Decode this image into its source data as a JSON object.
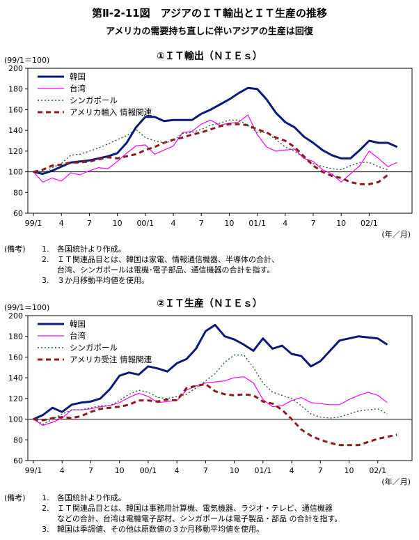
{
  "title": "第Ⅱ-2-11図　アジアのＩＴ輸出とＩＴ生産の推移",
  "subtitle": "アメリカの需要持ち直しに伴いアジアの生産は回復",
  "chart_data": [
    {
      "type": "line",
      "title": "①ＩＴ輸出（ＮＩＥｓ）",
      "ylabel": "(99/1＝100)",
      "xlabel": "(年／月)",
      "ylim": [
        60,
        200
      ],
      "yticks": [
        60,
        80,
        100,
        120,
        140,
        160,
        180,
        200
      ],
      "reference_line": 100,
      "legend_position": "top-left",
      "x_tick_labels": [
        {
          "index": 0,
          "label": "99/1"
        },
        {
          "index": 3,
          "label": "4"
        },
        {
          "index": 6,
          "label": "7"
        },
        {
          "index": 9,
          "label": "10"
        },
        {
          "index": 12,
          "label": "00/1"
        },
        {
          "index": 15,
          "label": "4"
        },
        {
          "index": 18,
          "label": "7"
        },
        {
          "index": 21,
          "label": "10"
        },
        {
          "index": 24,
          "label": "01/1"
        },
        {
          "index": 27,
          "label": "4"
        },
        {
          "index": 30,
          "label": "7"
        },
        {
          "index": 33,
          "label": "10"
        },
        {
          "index": 36,
          "label": "02/1"
        }
      ],
      "x_count": 41,
      "series": [
        {
          "name": "韓国",
          "color": "#0a1a7a",
          "style": "solid-thick",
          "values": [
            100,
            98,
            101,
            105,
            109,
            110,
            111,
            113,
            115,
            118,
            128,
            143,
            153,
            153,
            149,
            150,
            150,
            150,
            156,
            160,
            165,
            170,
            176,
            181,
            180,
            170,
            157,
            148,
            143,
            134,
            128,
            121,
            116,
            113,
            113,
            121,
            130,
            128,
            128,
            124
          ]
        },
        {
          "name": "台湾",
          "color": "#ff00ff",
          "style": "solid-thin",
          "values": [
            100,
            90,
            94,
            91,
            99,
            97,
            101,
            104,
            103,
            110,
            118,
            125,
            126,
            117,
            121,
            125,
            138,
            139,
            146,
            150,
            145,
            147,
            148,
            155,
            136,
            124,
            120,
            121,
            122,
            113,
            110,
            102,
            98,
            90,
            98,
            106,
            120,
            113,
            105,
            109
          ]
        },
        {
          "name": "シンガポール",
          "color": "#1a5c2a",
          "style": "dotted",
          "values": [
            100,
            98,
            104,
            108,
            116,
            117,
            120,
            123,
            127,
            131,
            135,
            141,
            133,
            130,
            128,
            130,
            137,
            138,
            141,
            145,
            147,
            150,
            150,
            145,
            138,
            138,
            131,
            124,
            120,
            114,
            108,
            105,
            103,
            102,
            106,
            109,
            109,
            105,
            102,
            null
          ]
        },
        {
          "name": "アメリカ輸入 情報関連",
          "color": "#8b1a1a",
          "style": "dashed-thick",
          "values": [
            100,
            102,
            106,
            107,
            109,
            109,
            110,
            112,
            114,
            113,
            115,
            117,
            121,
            124,
            128,
            131,
            133,
            136,
            138,
            141,
            144,
            146,
            146,
            145,
            141,
            138,
            133,
            130,
            124,
            115,
            106,
            100,
            96,
            94,
            90,
            88,
            88,
            90,
            97,
            null
          ]
        }
      ]
    },
    {
      "type": "line",
      "title": "②ＩＴ生産（ＮＩＥｓ）",
      "ylabel": "(99/1＝100)",
      "xlabel": "(年／月)",
      "ylim": [
        60,
        200
      ],
      "yticks": [
        60,
        80,
        100,
        120,
        140,
        160,
        180,
        200
      ],
      "reference_line": 100,
      "legend_position": "top-left",
      "x_tick_labels": [
        {
          "index": 0,
          "label": "99/1"
        },
        {
          "index": 3,
          "label": "4"
        },
        {
          "index": 6,
          "label": "7"
        },
        {
          "index": 9,
          "label": "10"
        },
        {
          "index": 12,
          "label": "00/1"
        },
        {
          "index": 15,
          "label": "4"
        },
        {
          "index": 18,
          "label": "7"
        },
        {
          "index": 21,
          "label": "10"
        },
        {
          "index": 24,
          "label": "01/1"
        },
        {
          "index": 27,
          "label": "4"
        },
        {
          "index": 30,
          "label": "7"
        },
        {
          "index": 33,
          "label": "10"
        },
        {
          "index": 36,
          "label": "02/1"
        }
      ],
      "x_count": 40,
      "series": [
        {
          "name": "韓国",
          "color": "#0a1a7a",
          "style": "solid-thick",
          "values": [
            100,
            104,
            111,
            107,
            114,
            116,
            117,
            120,
            129,
            142,
            145,
            143,
            151,
            149,
            146,
            154,
            158,
            168,
            185,
            191,
            180,
            177,
            172,
            166,
            178,
            168,
            171,
            163,
            161,
            151,
            156,
            166,
            176,
            178,
            180,
            179,
            178,
            172
          ]
        },
        {
          "name": "台湾",
          "color": "#ff00ff",
          "style": "solid-thin",
          "values": [
            100,
            94,
            97,
            101,
            109,
            109,
            110,
            112,
            113,
            116,
            121,
            125,
            122,
            116,
            117,
            118,
            128,
            132,
            135,
            136,
            137,
            140,
            141,
            135,
            119,
            112,
            113,
            118,
            121,
            116,
            115,
            114,
            114,
            119,
            123,
            126,
            123,
            116
          ]
        },
        {
          "name": "シンガポール",
          "color": "#1a5c2a",
          "style": "dotted",
          "values": [
            100,
            95,
            100,
            105,
            109,
            109,
            111,
            113,
            113,
            118,
            124,
            128,
            126,
            121,
            120,
            122,
            124,
            130,
            137,
            144,
            155,
            162,
            162,
            150,
            135,
            126,
            123,
            120,
            113,
            105,
            102,
            101,
            102,
            105,
            108,
            109,
            110,
            105
          ]
        },
        {
          "name": "アメリカ受注 情報関連",
          "color": "#8b1a1a",
          "style": "dashed-thick",
          "values": [
            100,
            99,
            101,
            102,
            101,
            103,
            107,
            110,
            111,
            112,
            114,
            118,
            118,
            117,
            119,
            118,
            130,
            132,
            134,
            127,
            124,
            123,
            124,
            123,
            117,
            115,
            109,
            100,
            90,
            84,
            80,
            77,
            75,
            75,
            75,
            78,
            81,
            83,
            85
          ]
        }
      ]
    }
  ],
  "notes1": {
    "head": "(備考)",
    "items": [
      {
        "num": "1.",
        "lines": [
          "各国統計より作成。"
        ]
      },
      {
        "num": "2.",
        "lines": [
          "ＩＴ関連品目とは、韓国は家電、情報通信機器、半導体の合計、",
          "台湾、シンガポールは電機･電子部品、通信機器の合計を指す。"
        ]
      },
      {
        "num": "3.",
        "lines": [
          "３か月移動平均値を使用。"
        ]
      }
    ]
  },
  "notes2": {
    "head": "(備考)",
    "items": [
      {
        "num": "1.",
        "lines": [
          "各国統計より作成。"
        ]
      },
      {
        "num": "2.",
        "lines": [
          "ＩＴ関連品目とは、韓国は事務用計算機、電気機器、ラジオ・テレビ、通信機器",
          "などの合計、台湾は電機電子部材、シンガポールは電子製品・部品 の合計を指す。"
        ]
      },
      {
        "num": "3.",
        "lines": [
          "韓国は季調値、その他は原数値の３か月移動平均値を使用。"
        ]
      }
    ]
  }
}
